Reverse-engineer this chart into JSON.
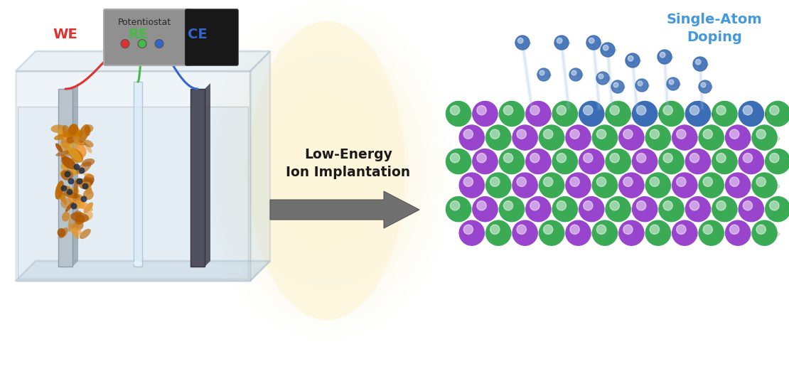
{
  "bg_color": "#ffffff",
  "arrow_text": "Low-Energy\nIon Implantation",
  "arrow_text_color": "#1a1a1a",
  "arrow_bg_color": "#fdf6d8",
  "we_label": "WE",
  "re_label": "RE",
  "ce_label": "CE",
  "we_color": "#e03030",
  "re_color": "#44bb44",
  "ce_color": "#3366cc",
  "potentiostat_label": "Potentiostat",
  "single_atom_label": "Single-Atom\nDoping",
  "single_atom_color": "#4499dd",
  "green_atom_color": "#3aaa55",
  "purple_atom_color": "#9944cc",
  "blue_atom_color": "#3a6db5",
  "tank_edge_color": "#9ab0c0",
  "electrode_we_color": "#b0bcc8",
  "electrode_ce_color": "#505060",
  "electrode_re_color": "#d0e8f8",
  "potentiostat_gray": "#8a8a8a",
  "potentiostat_dark": "#1a1a1a",
  "nanoflake_colors": [
    "#cc7700",
    "#dd9922",
    "#bb6600",
    "#ee9933",
    "#aa5500",
    "#cc8833"
  ],
  "water_color": "#a8c8e0",
  "arrow_fill": "#707070"
}
